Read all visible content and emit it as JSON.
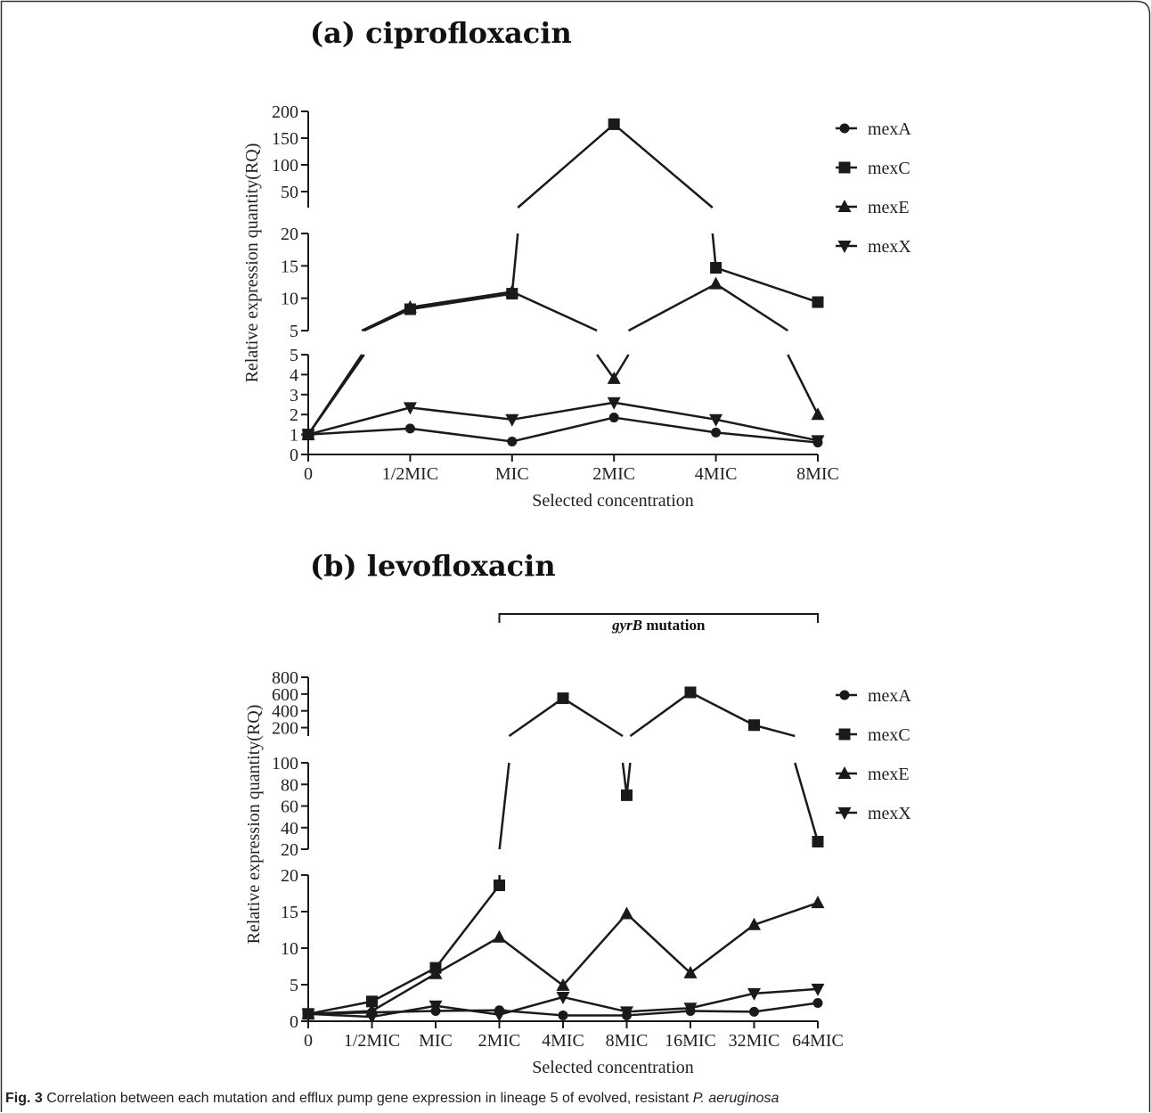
{
  "caption": {
    "label": "Fig. 3",
    "text": " Correlation between each mutation and efflux pump gene expression in lineage 5 of evolved, resistant ",
    "species": "P. aeruginosa"
  },
  "chart_data": [
    {
      "type": "line",
      "title": "(a) ciprofloxacin",
      "xlabel": "Selected concentration",
      "ylabel": "Relative expression quantity(RQ)",
      "categories": [
        "0",
        "1/2MIC",
        "MIC",
        "2MIC",
        "4MIC",
        "8MIC"
      ],
      "broken_y_axis": [
        {
          "range": [
            0,
            5
          ],
          "ticks": [
            0,
            1,
            2,
            3,
            4,
            5
          ]
        },
        {
          "range": [
            5,
            20
          ],
          "ticks": [
            5,
            10,
            15,
            20
          ]
        },
        {
          "range": [
            20,
            200
          ],
          "ticks": [
            50,
            100,
            150,
            200
          ]
        }
      ],
      "series": [
        {
          "name": "mexA",
          "marker": "circle",
          "values": [
            1.0,
            1.3,
            0.65,
            1.85,
            1.1,
            0.6
          ]
        },
        {
          "name": "mexC",
          "marker": "square",
          "values": [
            1.0,
            8.3,
            10.7,
            176,
            14.7,
            9.4
          ]
        },
        {
          "name": "mexE",
          "marker": "triangle-up",
          "values": [
            1.0,
            8.6,
            11.0,
            3.8,
            12.2,
            2.0
          ]
        },
        {
          "name": "mexX",
          "marker": "triangle-down",
          "values": [
            1.0,
            2.35,
            1.75,
            2.6,
            1.75,
            0.7
          ]
        }
      ],
      "legend_position": "top-right"
    },
    {
      "type": "line",
      "title": "(b) levofloxacin",
      "xlabel": "Selected concentration",
      "ylabel": "Relative expression quantity(RQ)",
      "categories": [
        "0",
        "1/2MIC",
        "MIC",
        "2MIC",
        "4MIC",
        "8MIC",
        "16MIC",
        "32MIC",
        "64MIC"
      ],
      "broken_y_axis": [
        {
          "range": [
            0,
            20
          ],
          "ticks": [
            0,
            5,
            10,
            15,
            20
          ]
        },
        {
          "range": [
            20,
            100
          ],
          "ticks": [
            20,
            40,
            60,
            80,
            100
          ]
        },
        {
          "range": [
            100,
            800
          ],
          "ticks": [
            200,
            400,
            600,
            800
          ]
        }
      ],
      "annotation": {
        "text_italic": "gyrB",
        "text_bold": " mutation",
        "from": "2MIC",
        "to": "64MIC"
      },
      "series": [
        {
          "name": "mexA",
          "marker": "circle",
          "values": [
            1.0,
            1.2,
            1.4,
            1.5,
            0.8,
            0.8,
            1.4,
            1.3,
            2.5
          ]
        },
        {
          "name": "mexC",
          "marker": "square",
          "values": [
            1.0,
            2.7,
            7.3,
            18.6,
            550,
            70,
            620,
            230,
            27
          ]
        },
        {
          "name": "mexE",
          "marker": "triangle-up",
          "values": [
            1.0,
            1.4,
            6.5,
            11.5,
            4.9,
            14.7,
            6.6,
            13.2,
            16.2
          ]
        },
        {
          "name": "mexX",
          "marker": "triangle-down",
          "values": [
            1.0,
            0.6,
            2.1,
            0.9,
            3.3,
            1.3,
            1.8,
            3.8,
            4.4
          ]
        }
      ],
      "legend_position": "top-right"
    }
  ]
}
